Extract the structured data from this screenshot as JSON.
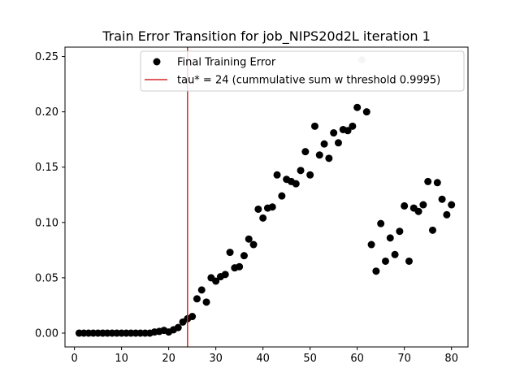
{
  "chart_data": {
    "type": "scatter",
    "title": "Train Error Transition for job_NIPS20d2L iteration 1",
    "xlabel": "",
    "ylabel": "",
    "xlim": [
      -2,
      83.5
    ],
    "ylim": [
      -0.0125,
      0.2585
    ],
    "xticks": [
      0,
      10,
      20,
      30,
      40,
      50,
      60,
      70,
      80
    ],
    "xtick_labels": [
      "0",
      "10",
      "20",
      "30",
      "40",
      "50",
      "60",
      "70",
      "80"
    ],
    "yticks": [
      0.0,
      0.05,
      0.1,
      0.15,
      0.2,
      0.25
    ],
    "ytick_labels": [
      "0.00",
      "0.05",
      "0.10",
      "0.15",
      "0.20",
      "0.25"
    ],
    "grid": false,
    "legend_position": "upper-right",
    "series": [
      {
        "name": "Final Training Error",
        "marker": "circle",
        "color": "#000000",
        "x": [
          1,
          2,
          3,
          4,
          5,
          6,
          7,
          8,
          9,
          10,
          11,
          12,
          13,
          14,
          15,
          16,
          17,
          18,
          19,
          20,
          21,
          22,
          23,
          24,
          25,
          26,
          27,
          28,
          29,
          30,
          31,
          32,
          33,
          34,
          35,
          36,
          37,
          38,
          39,
          40,
          41,
          42,
          43,
          44,
          45,
          46,
          47,
          48,
          49,
          50,
          51,
          52,
          53,
          54,
          55,
          56,
          57,
          58,
          59,
          60,
          61,
          62,
          63,
          64,
          65,
          66,
          67,
          68,
          69,
          70,
          71,
          72,
          73,
          74,
          75,
          76,
          77,
          78,
          79,
          80
        ],
        "y": [
          0.0,
          0.0,
          0.0,
          0.0,
          0.0,
          0.0,
          0.0,
          0.0,
          0.0,
          0.0,
          0.0,
          0.0,
          0.0,
          0.0,
          0.0,
          0.0,
          0.001,
          0.0015,
          0.0025,
          0.001,
          0.003,
          0.005,
          0.01,
          0.013,
          0.015,
          0.031,
          0.039,
          0.028,
          0.05,
          0.047,
          0.051,
          0.053,
          0.073,
          0.059,
          0.06,
          0.07,
          0.085,
          0.08,
          0.112,
          0.104,
          0.113,
          0.114,
          0.143,
          0.124,
          0.139,
          0.137,
          0.135,
          0.147,
          0.164,
          0.143,
          0.187,
          0.161,
          0.171,
          0.158,
          0.181,
          0.172,
          0.184,
          0.183,
          0.187,
          0.204,
          0.247,
          0.2,
          0.08,
          0.056,
          0.099,
          0.065,
          0.086,
          0.071,
          0.092,
          0.115,
          0.065,
          0.113,
          0.11,
          0.116,
          0.137,
          0.093,
          0.136,
          0.121,
          0.107,
          0.116
        ],
        "faded_points": [
          60
        ]
      }
    ],
    "vlines": [
      {
        "name": "tau* = 24 (cummulative sum w threshold 0.9995)",
        "x": 24,
        "color": "#d62728"
      }
    ]
  }
}
